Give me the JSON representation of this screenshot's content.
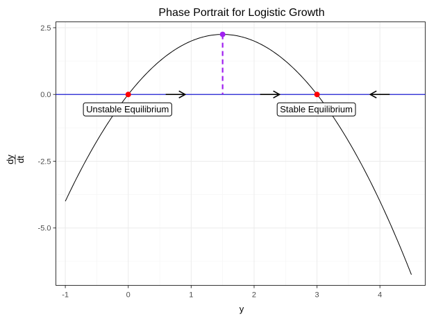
{
  "chart_data": {
    "type": "line",
    "title": "Phase Portrait for Logistic Growth",
    "xlabel": "y",
    "ylabel_numerator": "dy",
    "ylabel_denominator": "dt",
    "xlim": [
      -1.15,
      4.72
    ],
    "ylim": [
      -7.15,
      2.72
    ],
    "x_ticks": [
      -1,
      0,
      1,
      2,
      3,
      4
    ],
    "x_tick_labels": [
      "-1",
      "0",
      "1",
      "2",
      "3",
      "4"
    ],
    "y_ticks": [
      -5,
      -2.5,
      0,
      2.5
    ],
    "y_tick_labels": [
      "-5.0",
      "-2.5",
      "0.0",
      "2.5"
    ],
    "grid": true,
    "series": [
      {
        "curve": "dy/dt = y(3 - y)",
        "x_range": [
          -1,
          4.5
        ],
        "color": "#000000"
      }
    ],
    "horizontal_line": {
      "y": 0,
      "color": "#0000cd"
    },
    "equilibria": [
      {
        "x": 0,
        "y": 0,
        "label": "Unstable Equilibrium",
        "color": "#ff0000"
      },
      {
        "x": 3,
        "y": 0,
        "label": "Stable Equilibrium",
        "color": "#ff0000"
      }
    ],
    "maximum_point": {
      "x": 1.5,
      "y": 2.25,
      "color": "#a020f0"
    },
    "direction_arrows": [
      {
        "x": 0.75,
        "direction": "right"
      },
      {
        "x": 2.25,
        "direction": "right"
      },
      {
        "x": 4.0,
        "direction": "left"
      }
    ]
  }
}
